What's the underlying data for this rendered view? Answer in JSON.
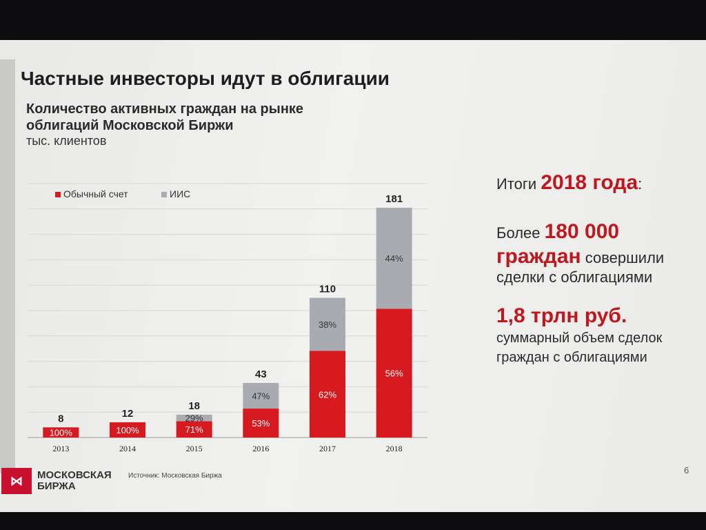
{
  "slide": {
    "title": "Частные инвесторы идут в облигации",
    "subtitle": "Количество активных граждан на рынке облигаций Московской Биржи",
    "unit": "тыс. клиентов",
    "source": "Источник: Московская Биржа",
    "page_number": "6",
    "logo": {
      "line1": "МОСКОВСКАЯ",
      "line2": "БИРЖА"
    }
  },
  "summary": {
    "intro": "Итоги",
    "year": "2018 года",
    "colon": ":",
    "prefix": "Более",
    "count": "180 000",
    "citizens": "граждан",
    "performed": "совершили",
    "deals": "сделки с облигациями",
    "volume": "1,8 трлн руб.",
    "volume_desc1": "суммарный объем сделок",
    "volume_desc2": "граждан с облигациями"
  },
  "colors": {
    "regular": "#d71920",
    "iis": "#a8acb1",
    "accent": "#c0171e"
  },
  "chart_data": {
    "type": "bar",
    "stacked": true,
    "categories": [
      "2013",
      "2014",
      "2015",
      "2016",
      "2017",
      "2018"
    ],
    "totals": [
      8,
      12,
      18,
      43,
      110,
      181
    ],
    "series": [
      {
        "name": "Обычный счет",
        "percent_labels": [
          "100%",
          "100%",
          "71%",
          "53%",
          "62%",
          "56%"
        ],
        "values": [
          8,
          12,
          12.8,
          22.8,
          68.2,
          101.4
        ]
      },
      {
        "name": "ИИС",
        "percent_labels": [
          "",
          "",
          "29%",
          "47%",
          "38%",
          "44%"
        ],
        "values": [
          0,
          0,
          5.2,
          20.2,
          41.8,
          79.6
        ]
      }
    ],
    "ylim": [
      0,
      200
    ],
    "grid": true,
    "legend_position": "top-left"
  }
}
